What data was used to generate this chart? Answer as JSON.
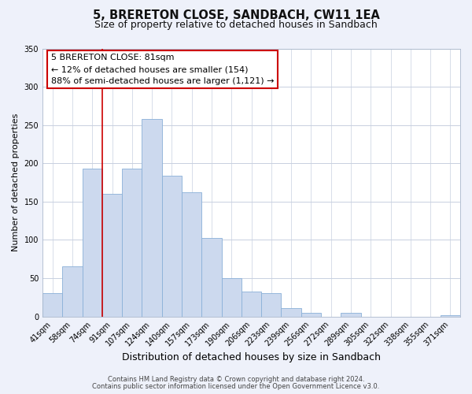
{
  "title": "5, BRERETON CLOSE, SANDBACH, CW11 1EA",
  "subtitle": "Size of property relative to detached houses in Sandbach",
  "xlabel": "Distribution of detached houses by size in Sandbach",
  "ylabel": "Number of detached properties",
  "bar_labels": [
    "41sqm",
    "58sqm",
    "74sqm",
    "91sqm",
    "107sqm",
    "124sqm",
    "140sqm",
    "157sqm",
    "173sqm",
    "190sqm",
    "206sqm",
    "223sqm",
    "239sqm",
    "256sqm",
    "272sqm",
    "289sqm",
    "305sqm",
    "322sqm",
    "338sqm",
    "355sqm",
    "371sqm"
  ],
  "bar_values": [
    30,
    65,
    193,
    160,
    193,
    258,
    184,
    162,
    103,
    50,
    33,
    30,
    11,
    5,
    0,
    5,
    0,
    0,
    0,
    0,
    2
  ],
  "bar_color": "#ccd9ee",
  "bar_edge_color": "#8ab0d8",
  "vline_index": 2.5,
  "vline_color": "#cc0000",
  "annotation_title": "5 BRERETON CLOSE: 81sqm",
  "annotation_line1": "← 12% of detached houses are smaller (154)",
  "annotation_line2": "88% of semi-detached houses are larger (1,121) →",
  "annotation_box_color": "#ffffff",
  "annotation_box_edge": "#cc0000",
  "ylim": [
    0,
    350
  ],
  "yticks": [
    0,
    50,
    100,
    150,
    200,
    250,
    300,
    350
  ],
  "footer1": "Contains HM Land Registry data © Crown copyright and database right 2024.",
  "footer2": "Contains public sector information licensed under the Open Government Licence v3.0.",
  "bg_color": "#eef1fa",
  "plot_bg_color": "#ffffff",
  "grid_color": "#c8d0e0",
  "title_fontsize": 10.5,
  "subtitle_fontsize": 9,
  "xlabel_fontsize": 9,
  "ylabel_fontsize": 8,
  "tick_fontsize": 7,
  "annotation_fontsize": 8,
  "footer_fontsize": 6
}
